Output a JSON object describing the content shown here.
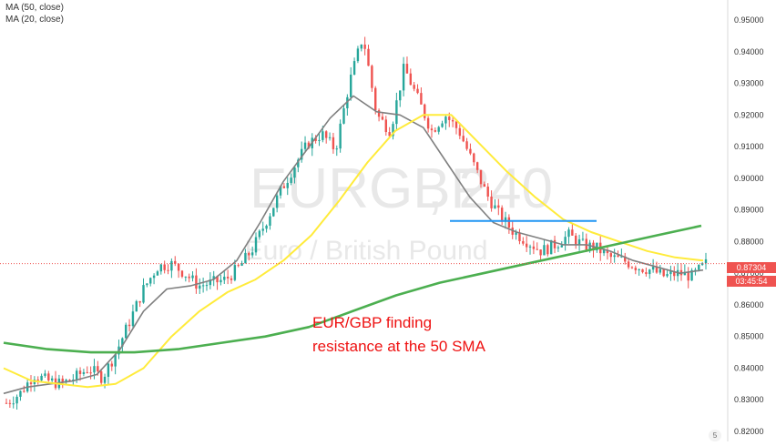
{
  "legend": {
    "ma50": "MA (50, close)",
    "ma20": "MA (20, close)"
  },
  "watermark": {
    "symbol": "EURGBP",
    "timeframe": ", 240",
    "description": "Euro / British Pound"
  },
  "annotation": {
    "line1": "EUR/GBP finding",
    "line2": "resistance at the 50 SMA"
  },
  "price_tag": {
    "price": "0.87304",
    "countdown": "03:45:54"
  },
  "footer_badge": "5",
  "colors": {
    "up_candle": "#26a69a",
    "down_candle": "#ef5350",
    "ma20": "#808080",
    "ma50": "#ffeb3b",
    "ma200": "#4caf50",
    "resistance_line": "#2196f3",
    "annotation_text": "#ee1111",
    "price_tag_bg": "#ef5350"
  },
  "chart_data": {
    "type": "candlestick",
    "symbol": "EURGBP",
    "timeframe": "240",
    "title": "EUR/GBP finding resistance at the 50 SMA",
    "ylim": [
      0.82,
      0.955
    ],
    "y_ticks": [
      "0.95000",
      "0.94000",
      "0.93000",
      "0.92000",
      "0.91000",
      "0.90000",
      "0.89000",
      "0.88000",
      "0.87000",
      "0.86000",
      "0.85000",
      "0.84000",
      "0.83000",
      "0.82000"
    ],
    "last_price": 0.87304,
    "close_series": [
      0.829,
      0.832,
      0.838,
      0.836,
      0.835,
      0.837,
      0.84,
      0.837,
      0.845,
      0.855,
      0.865,
      0.872,
      0.873,
      0.87,
      0.866,
      0.867,
      0.868,
      0.872,
      0.878,
      0.887,
      0.896,
      0.904,
      0.911,
      0.914,
      0.909,
      0.93,
      0.945,
      0.92,
      0.915,
      0.935,
      0.925,
      0.915,
      0.92,
      0.915,
      0.905,
      0.895,
      0.888,
      0.883,
      0.88,
      0.877,
      0.879,
      0.882,
      0.879,
      0.878,
      0.875,
      0.874,
      0.872,
      0.871,
      0.869,
      0.87,
      0.869,
      0.873
    ],
    "series": [
      {
        "name": "MA (20, close)",
        "values": [
          0.832,
          0.834,
          0.835,
          0.836,
          0.838,
          0.846,
          0.858,
          0.865,
          0.866,
          0.868,
          0.874,
          0.886,
          0.899,
          0.909,
          0.919,
          0.926,
          0.921,
          0.92,
          0.916,
          0.905,
          0.894,
          0.886,
          0.883,
          0.881,
          0.879,
          0.879,
          0.877,
          0.874,
          0.872,
          0.87,
          0.871
        ]
      },
      {
        "name": "MA (50, close)",
        "values": [
          0.84,
          0.836,
          0.835,
          0.834,
          0.835,
          0.84,
          0.85,
          0.858,
          0.864,
          0.868,
          0.874,
          0.882,
          0.893,
          0.905,
          0.915,
          0.92,
          0.92,
          0.911,
          0.902,
          0.894,
          0.887,
          0.883,
          0.88,
          0.877,
          0.875,
          0.874
        ]
      },
      {
        "name": "MA (200)",
        "values": [
          0.848,
          0.846,
          0.845,
          0.845,
          0.846,
          0.848,
          0.85,
          0.853,
          0.858,
          0.863,
          0.867,
          0.87,
          0.873,
          0.876,
          0.879,
          0.882,
          0.885
        ]
      }
    ],
    "resistance_level": 0.8865
  }
}
